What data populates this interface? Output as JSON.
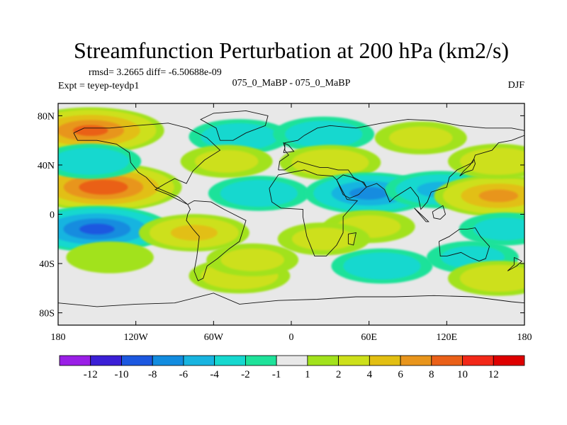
{
  "chart_data": {
    "type": "heatmap",
    "title": "Streamfunction Perturbation at 200 hPa (km2/s)",
    "rmsd_line": "rmsd= 3.2665 diff= -6.50688e-09",
    "experiment": "Expt = teyep-teydp1",
    "comparison": "075_0_MaBP - 075_0_MaBP",
    "season": "DJF",
    "xlabel": "",
    "ylabel": "",
    "x_ticks": [
      "180",
      "120W",
      "60W",
      "0",
      "60E",
      "120E",
      "180"
    ],
    "y_ticks": [
      "80N",
      "40N",
      "0",
      "40S",
      "80S"
    ],
    "xlim": [
      -180,
      180
    ],
    "ylim": [
      -90,
      90
    ],
    "colorbar": {
      "labels": [
        "-12",
        "-10",
        "-8",
        "-6",
        "-4",
        "-2",
        "-1",
        "1",
        "2",
        "4",
        "6",
        "8",
        "10",
        "12"
      ],
      "colors": [
        "#9a1fe6",
        "#3b1fd6",
        "#1c58e0",
        "#128cdf",
        "#18b4e0",
        "#16d8cf",
        "#1ee29a",
        "#e8e8e8",
        "#a2e21c",
        "#cde01a",
        "#e2bf12",
        "#e8951c",
        "#ea6018",
        "#f22818",
        "#de0000"
      ]
    },
    "anomaly_blobs": [
      {
        "lon": -155,
        "lat": 68,
        "value": 8
      },
      {
        "lon": -145,
        "lat": 22,
        "value": 9
      },
      {
        "lon": -155,
        "lat": 43,
        "value": -3
      },
      {
        "lon": -150,
        "lat": -12,
        "value": -8
      },
      {
        "lon": -140,
        "lat": -35,
        "value": 1.5
      },
      {
        "lon": -75,
        "lat": -15,
        "value": 4
      },
      {
        "lon": -40,
        "lat": -50,
        "value": 3
      },
      {
        "lon": -30,
        "lat": -37,
        "value": 2
      },
      {
        "lon": -25,
        "lat": 17,
        "value": -3
      },
      {
        "lon": -40,
        "lat": 63,
        "value": -3
      },
      {
        "lon": 25,
        "lat": 65,
        "value": -3
      },
      {
        "lon": 100,
        "lat": 62,
        "value": 2
      },
      {
        "lon": 30,
        "lat": 42,
        "value": 3
      },
      {
        "lon": -50,
        "lat": 43,
        "value": 2
      },
      {
        "lon": 60,
        "lat": 17,
        "value": -6
      },
      {
        "lon": 115,
        "lat": 20,
        "value": -4
      },
      {
        "lon": 160,
        "lat": 15,
        "value": 6
      },
      {
        "lon": 160,
        "lat": 43,
        "value": 3
      },
      {
        "lon": 70,
        "lat": -42,
        "value": -3
      },
      {
        "lon": 140,
        "lat": -35,
        "value": -2
      },
      {
        "lon": 60,
        "lat": -10,
        "value": 2
      },
      {
        "lon": 25,
        "lat": -20,
        "value": 2
      },
      {
        "lon": 160,
        "lat": -52,
        "value": 3
      },
      {
        "lon": 165,
        "lat": -12,
        "value": -2
      }
    ]
  }
}
